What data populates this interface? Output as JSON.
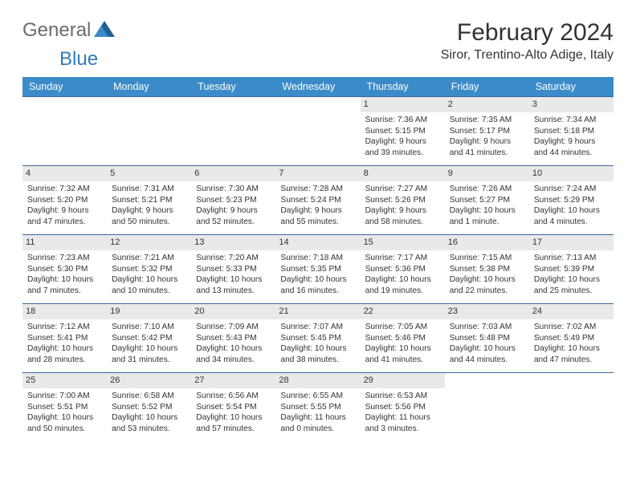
{
  "brand": {
    "general": "General",
    "blue": "Blue"
  },
  "title": "February 2024",
  "subtitle": "Siror, Trentino-Alto Adige, Italy",
  "colors": {
    "header_bg": "#3b8bc8",
    "header_text": "#ffffff",
    "row_border": "#3b6b9a",
    "daynum_bg": "#e9e9e9",
    "text": "#333333",
    "logo_gray": "#6b6b6b",
    "logo_blue": "#2f7bbf",
    "page_bg": "#ffffff"
  },
  "weekdays": [
    "Sunday",
    "Monday",
    "Tuesday",
    "Wednesday",
    "Thursday",
    "Friday",
    "Saturday"
  ],
  "grid": [
    [
      null,
      null,
      null,
      null,
      {
        "n": "1",
        "sunrise": "Sunrise: 7:36 AM",
        "sunset": "Sunset: 5:15 PM",
        "daylight": "Daylight: 9 hours and 39 minutes."
      },
      {
        "n": "2",
        "sunrise": "Sunrise: 7:35 AM",
        "sunset": "Sunset: 5:17 PM",
        "daylight": "Daylight: 9 hours and 41 minutes."
      },
      {
        "n": "3",
        "sunrise": "Sunrise: 7:34 AM",
        "sunset": "Sunset: 5:18 PM",
        "daylight": "Daylight: 9 hours and 44 minutes."
      }
    ],
    [
      {
        "n": "4",
        "sunrise": "Sunrise: 7:32 AM",
        "sunset": "Sunset: 5:20 PM",
        "daylight": "Daylight: 9 hours and 47 minutes."
      },
      {
        "n": "5",
        "sunrise": "Sunrise: 7:31 AM",
        "sunset": "Sunset: 5:21 PM",
        "daylight": "Daylight: 9 hours and 50 minutes."
      },
      {
        "n": "6",
        "sunrise": "Sunrise: 7:30 AM",
        "sunset": "Sunset: 5:23 PM",
        "daylight": "Daylight: 9 hours and 52 minutes."
      },
      {
        "n": "7",
        "sunrise": "Sunrise: 7:28 AM",
        "sunset": "Sunset: 5:24 PM",
        "daylight": "Daylight: 9 hours and 55 minutes."
      },
      {
        "n": "8",
        "sunrise": "Sunrise: 7:27 AM",
        "sunset": "Sunset: 5:26 PM",
        "daylight": "Daylight: 9 hours and 58 minutes."
      },
      {
        "n": "9",
        "sunrise": "Sunrise: 7:26 AM",
        "sunset": "Sunset: 5:27 PM",
        "daylight": "Daylight: 10 hours and 1 minute."
      },
      {
        "n": "10",
        "sunrise": "Sunrise: 7:24 AM",
        "sunset": "Sunset: 5:29 PM",
        "daylight": "Daylight: 10 hours and 4 minutes."
      }
    ],
    [
      {
        "n": "11",
        "sunrise": "Sunrise: 7:23 AM",
        "sunset": "Sunset: 5:30 PM",
        "daylight": "Daylight: 10 hours and 7 minutes."
      },
      {
        "n": "12",
        "sunrise": "Sunrise: 7:21 AM",
        "sunset": "Sunset: 5:32 PM",
        "daylight": "Daylight: 10 hours and 10 minutes."
      },
      {
        "n": "13",
        "sunrise": "Sunrise: 7:20 AM",
        "sunset": "Sunset: 5:33 PM",
        "daylight": "Daylight: 10 hours and 13 minutes."
      },
      {
        "n": "14",
        "sunrise": "Sunrise: 7:18 AM",
        "sunset": "Sunset: 5:35 PM",
        "daylight": "Daylight: 10 hours and 16 minutes."
      },
      {
        "n": "15",
        "sunrise": "Sunrise: 7:17 AM",
        "sunset": "Sunset: 5:36 PM",
        "daylight": "Daylight: 10 hours and 19 minutes."
      },
      {
        "n": "16",
        "sunrise": "Sunrise: 7:15 AM",
        "sunset": "Sunset: 5:38 PM",
        "daylight": "Daylight: 10 hours and 22 minutes."
      },
      {
        "n": "17",
        "sunrise": "Sunrise: 7:13 AM",
        "sunset": "Sunset: 5:39 PM",
        "daylight": "Daylight: 10 hours and 25 minutes."
      }
    ],
    [
      {
        "n": "18",
        "sunrise": "Sunrise: 7:12 AM",
        "sunset": "Sunset: 5:41 PM",
        "daylight": "Daylight: 10 hours and 28 minutes."
      },
      {
        "n": "19",
        "sunrise": "Sunrise: 7:10 AM",
        "sunset": "Sunset: 5:42 PM",
        "daylight": "Daylight: 10 hours and 31 minutes."
      },
      {
        "n": "20",
        "sunrise": "Sunrise: 7:09 AM",
        "sunset": "Sunset: 5:43 PM",
        "daylight": "Daylight: 10 hours and 34 minutes."
      },
      {
        "n": "21",
        "sunrise": "Sunrise: 7:07 AM",
        "sunset": "Sunset: 5:45 PM",
        "daylight": "Daylight: 10 hours and 38 minutes."
      },
      {
        "n": "22",
        "sunrise": "Sunrise: 7:05 AM",
        "sunset": "Sunset: 5:46 PM",
        "daylight": "Daylight: 10 hours and 41 minutes."
      },
      {
        "n": "23",
        "sunrise": "Sunrise: 7:03 AM",
        "sunset": "Sunset: 5:48 PM",
        "daylight": "Daylight: 10 hours and 44 minutes."
      },
      {
        "n": "24",
        "sunrise": "Sunrise: 7:02 AM",
        "sunset": "Sunset: 5:49 PM",
        "daylight": "Daylight: 10 hours and 47 minutes."
      }
    ],
    [
      {
        "n": "25",
        "sunrise": "Sunrise: 7:00 AM",
        "sunset": "Sunset: 5:51 PM",
        "daylight": "Daylight: 10 hours and 50 minutes."
      },
      {
        "n": "26",
        "sunrise": "Sunrise: 6:58 AM",
        "sunset": "Sunset: 5:52 PM",
        "daylight": "Daylight: 10 hours and 53 minutes."
      },
      {
        "n": "27",
        "sunrise": "Sunrise: 6:56 AM",
        "sunset": "Sunset: 5:54 PM",
        "daylight": "Daylight: 10 hours and 57 minutes."
      },
      {
        "n": "28",
        "sunrise": "Sunrise: 6:55 AM",
        "sunset": "Sunset: 5:55 PM",
        "daylight": "Daylight: 11 hours and 0 minutes."
      },
      {
        "n": "29",
        "sunrise": "Sunrise: 6:53 AM",
        "sunset": "Sunset: 5:56 PM",
        "daylight": "Daylight: 11 hours and 3 minutes."
      },
      null,
      null
    ]
  ]
}
